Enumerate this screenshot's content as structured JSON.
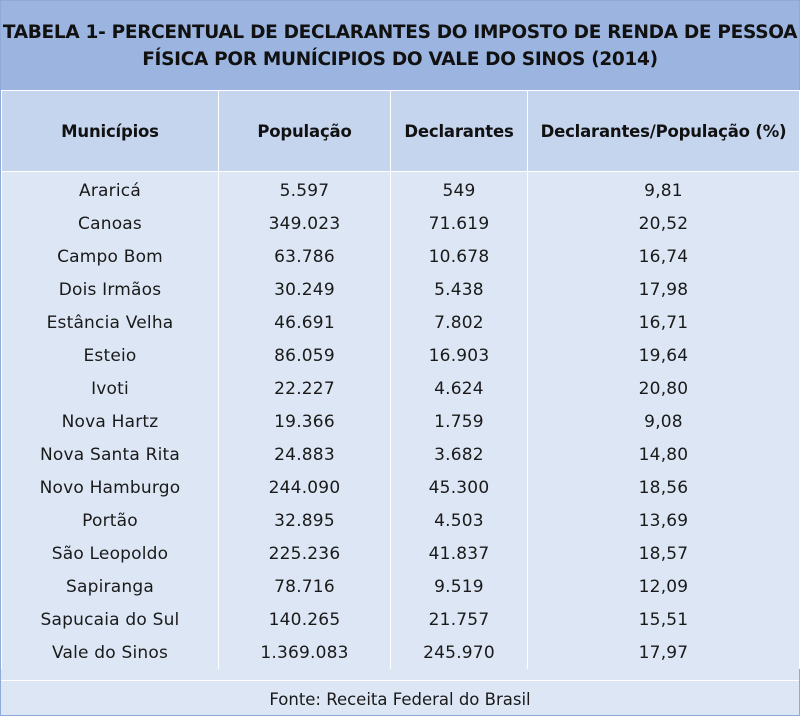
{
  "title": {
    "line1": "TABELA 1- PERCENTUAL DE DECLARANTES DO IMPOSTO DE RENDA DE PESSOA",
    "line2": "FÍSICA POR MUNÍCIPIOS DO VALE DO SINOS (2014)"
  },
  "columns": [
    "Municípios",
    "População",
    "Declarantes",
    "Declarantes/População (%)"
  ],
  "rows": [
    [
      "Araricá",
      "5.597",
      "549",
      "9,81"
    ],
    [
      "Canoas",
      "349.023",
      "71.619",
      "20,52"
    ],
    [
      "Campo Bom",
      "63.786",
      "10.678",
      "16,74"
    ],
    [
      "Dois Irmãos",
      "30.249",
      "5.438",
      "17,98"
    ],
    [
      "Estância Velha",
      "46.691",
      "7.802",
      "16,71"
    ],
    [
      "Esteio",
      "86.059",
      "16.903",
      "19,64"
    ],
    [
      "Ivoti",
      "22.227",
      "4.624",
      "20,80"
    ],
    [
      "Nova Hartz",
      "19.366",
      "1.759",
      "9,08"
    ],
    [
      "Nova Santa Rita",
      "24.883",
      "3.682",
      "14,80"
    ],
    [
      "Novo Hamburgo",
      "244.090",
      "45.300",
      "18,56"
    ],
    [
      "Portão",
      "32.895",
      "4.503",
      "13,69"
    ],
    [
      "São Leopoldo",
      "225.236",
      "41.837",
      "18,57"
    ],
    [
      "Sapiranga",
      "78.716",
      "9.519",
      "12,09"
    ],
    [
      "Sapucaia do Sul",
      "140.265",
      "21.757",
      "15,51"
    ],
    [
      "Vale do Sinos",
      "1.369.083",
      "245.970",
      "17,97"
    ]
  ],
  "source": "Fonte: Receita Federal do Brasil",
  "colors": {
    "title_bg": "#9bb5e0",
    "header_bg": "#c5d5ee",
    "body_bg": "#dce6f4"
  }
}
